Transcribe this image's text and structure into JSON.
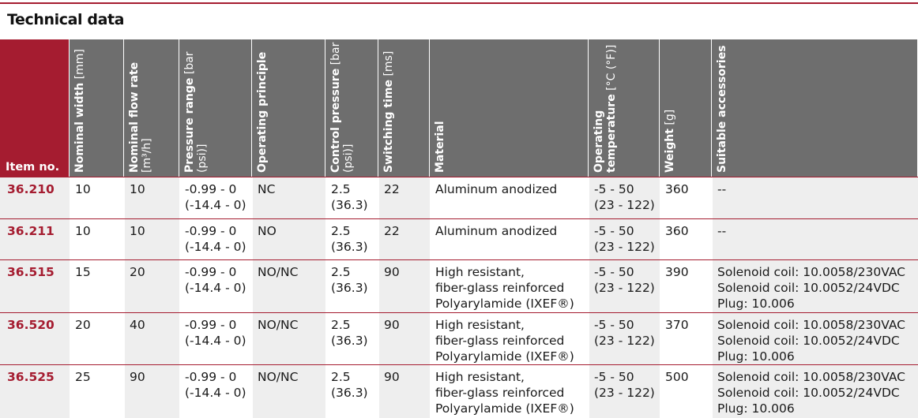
{
  "title": "Technical data",
  "header": {
    "item_no": "Item no.",
    "columns": [
      {
        "key": "nominal_width",
        "label": "Nominal width",
        "unit": "[mm]"
      },
      {
        "key": "nominal_flow",
        "label": "Nominal flow rate",
        "unit": "[m³/h]"
      },
      {
        "key": "pressure_range",
        "label": "Pressure range",
        "unit": "[bar (psi)]"
      },
      {
        "key": "operating_principle",
        "label": "Operating principle",
        "unit": ""
      },
      {
        "key": "control_pressure",
        "label": "Control pressure",
        "unit": "[bar (psi)]"
      },
      {
        "key": "switching_time",
        "label": "Switching time",
        "unit": "[ms]"
      },
      {
        "key": "material",
        "label": "Material",
        "unit": ""
      },
      {
        "key": "operating_temperature",
        "label": "Operating temperature",
        "unit": "[°C (°F)]"
      },
      {
        "key": "weight",
        "label": "Weight",
        "unit": "[g]"
      },
      {
        "key": "suitable_accessories",
        "label": "Suitable accessories",
        "unit": ""
      }
    ]
  },
  "rows": [
    {
      "item": "36.210",
      "nominal_width": "10",
      "nominal_flow": "10",
      "pressure_range": [
        "-0.99 - 0",
        "(-14.4 - 0)"
      ],
      "operating_principle": "NC",
      "control_pressure": [
        "2.5",
        "(36.3)"
      ],
      "switching_time": "22",
      "material": [
        "Aluminum anodized"
      ],
      "operating_temperature": [
        "-5 - 50",
        "(23 - 122)"
      ],
      "weight": "360",
      "suitable_accessories": [
        "--"
      ]
    },
    {
      "item": "36.211",
      "nominal_width": "10",
      "nominal_flow": "10",
      "pressure_range": [
        "-0.99 - 0",
        "(-14.4 - 0)"
      ],
      "operating_principle": "NO",
      "control_pressure": [
        "2.5",
        "(36.3)"
      ],
      "switching_time": "22",
      "material": [
        "Aluminum anodized"
      ],
      "operating_temperature": [
        "-5 - 50",
        "(23 - 122)"
      ],
      "weight": "360",
      "suitable_accessories": [
        "--"
      ]
    },
    {
      "item": "36.515",
      "nominal_width": "15",
      "nominal_flow": "20",
      "pressure_range": [
        "-0.99 - 0",
        "(-14.4 - 0)"
      ],
      "operating_principle": "NO/NC",
      "control_pressure": [
        "2.5",
        "(36.3)"
      ],
      "switching_time": "90",
      "material": [
        "High resistant,",
        "fiber-glass reinforced",
        "Polyarylamide (IXEF®)"
      ],
      "operating_temperature": [
        "-5 - 50",
        "(23 - 122)"
      ],
      "weight": "390",
      "suitable_accessories": [
        "Solenoid coil: 10.0058/230VAC",
        "Solenoid coil: 10.0052/24VDC",
        "Plug: 10.006"
      ]
    },
    {
      "item": "36.520",
      "nominal_width": "20",
      "nominal_flow": "40",
      "pressure_range": [
        "-0.99 - 0",
        "(-14.4 - 0)"
      ],
      "operating_principle": "NO/NC",
      "control_pressure": [
        "2.5",
        "(36.3)"
      ],
      "switching_time": "90",
      "material": [
        "High resistant,",
        "fiber-glass reinforced",
        "Polyarylamide (IXEF®)"
      ],
      "operating_temperature": [
        "-5 - 50",
        "(23 - 122)"
      ],
      "weight": "370",
      "suitable_accessories": [
        "Solenoid coil: 10.0058/230VAC",
        "Solenoid coil: 10.0052/24VDC",
        "Plug: 10.006"
      ]
    },
    {
      "item": "36.525",
      "nominal_width": "25",
      "nominal_flow": "90",
      "pressure_range": [
        "-0.99 - 0",
        "(-14.4 - 0)"
      ],
      "operating_principle": "NO/NC",
      "control_pressure": [
        "2.5",
        "(36.3)"
      ],
      "switching_time": "90",
      "material": [
        "High resistant,",
        "fiber-glass reinforced",
        "Polyarylamide (IXEF®)"
      ],
      "operating_temperature": [
        "-5 - 50",
        "(23 - 122)"
      ],
      "weight": "500",
      "suitable_accessories": [
        "Solenoid coil: 10.0058/230VAC",
        "Solenoid coil: 10.0052/24VDC",
        "Plug: 10.006"
      ]
    }
  ],
  "colors": {
    "accent": "#a51c30",
    "header_gray": "#6e6e6e",
    "shade": "#eeeeee"
  }
}
